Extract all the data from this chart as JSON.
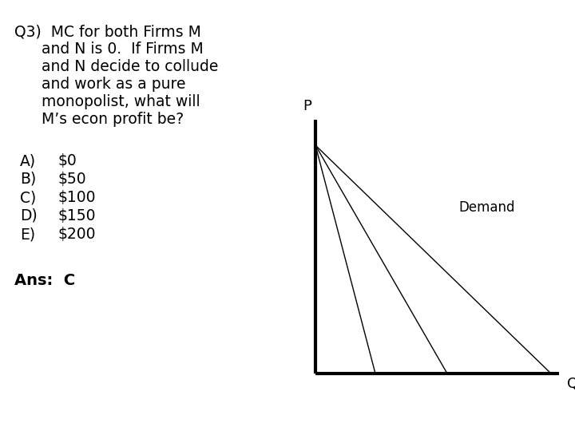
{
  "background_color": "#ffffff",
  "question_line1": "Q3)  MC for both Firms M",
  "question_lines_indent": [
    "and N is 0.  If Firms M",
    "and N decide to collude",
    "and work as a pure",
    "monopolist, what will",
    "M’s econ profit be?"
  ],
  "choices": [
    [
      "A)",
      "$0"
    ],
    [
      "B)",
      "$50"
    ],
    [
      "C)",
      "$100"
    ],
    [
      "D)",
      "$150"
    ],
    [
      "E)",
      "$200"
    ]
  ],
  "answer_text": "Ans:  C",
  "axis_label_P": "P",
  "axis_label_Q": "Q",
  "demand_label": "Demand",
  "font_size_question": 13.5,
  "font_size_choices": 13.5,
  "font_size_answer": 14,
  "font_size_axis": 13,
  "font_size_demand": 12
}
